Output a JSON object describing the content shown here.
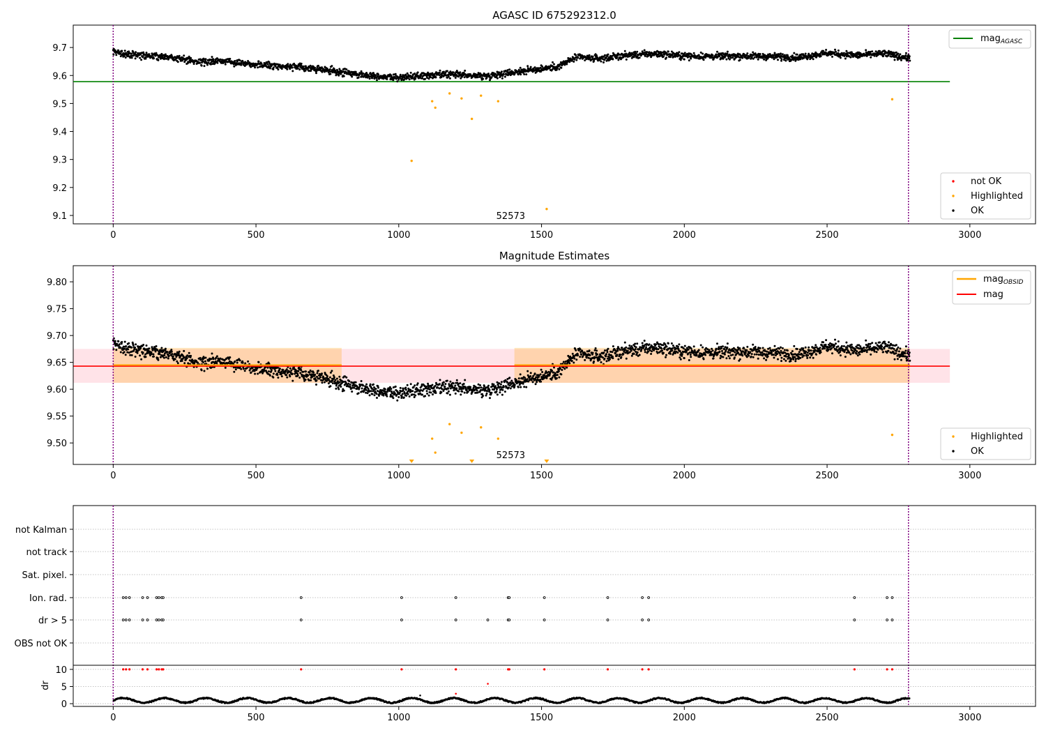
{
  "chart_data": [
    {
      "type": "scatter",
      "title": "AGASC ID 675292312.0",
      "xlabel": "",
      "ylabel": "",
      "xlim": [
        -140,
        3230
      ],
      "ylim": [
        9.07,
        9.78
      ],
      "xticks": [
        0,
        500,
        1000,
        1500,
        2000,
        2500,
        3000
      ],
      "xtick_labels": [
        "0",
        "500",
        "1000",
        "1500",
        "2000",
        "2500",
        "3000"
      ],
      "yticks": [
        9.1,
        9.2,
        9.3,
        9.4,
        9.5,
        9.6,
        9.7
      ],
      "ytick_labels": [
        "9.1",
        "9.2",
        "9.3",
        "9.4",
        "9.5",
        "9.6",
        "9.7"
      ],
      "reference_line": {
        "name": "mag_{AGASC}",
        "label_main": "mag",
        "label_sub": "AGASC",
        "value": 9.578,
        "color": "#008000",
        "x_range": [
          -140,
          2930
        ]
      },
      "vlines": [
        0,
        2785
      ],
      "vline_color": "#800080",
      "annotation": {
        "text": "52573",
        "x": 1392,
        "y": 9.1
      },
      "trend": [
        [
          0,
          9.683
        ],
        [
          100,
          9.672
        ],
        [
          200,
          9.666
        ],
        [
          300,
          9.648
        ],
        [
          400,
          9.652
        ],
        [
          500,
          9.64
        ],
        [
          600,
          9.633
        ],
        [
          700,
          9.625
        ],
        [
          800,
          9.611
        ],
        [
          900,
          9.6
        ],
        [
          1000,
          9.592
        ],
        [
          1100,
          9.6
        ],
        [
          1200,
          9.603
        ],
        [
          1300,
          9.598
        ],
        [
          1400,
          9.612
        ],
        [
          1500,
          9.624
        ],
        [
          1560,
          9.632
        ],
        [
          1620,
          9.665
        ],
        [
          1700,
          9.66
        ],
        [
          1800,
          9.672
        ],
        [
          1900,
          9.678
        ],
        [
          2000,
          9.67
        ],
        [
          2100,
          9.668
        ],
        [
          2200,
          9.67
        ],
        [
          2300,
          9.668
        ],
        [
          2400,
          9.665
        ],
        [
          2500,
          9.68
        ],
        [
          2600,
          9.672
        ],
        [
          2700,
          9.678
        ],
        [
          2790,
          9.662
        ]
      ],
      "ok_series": {
        "name": "OK",
        "color": "#000000",
        "x_start": 0,
        "x_end": 2790,
        "count": 2300,
        "scatter": 0.011
      },
      "highlighted_points": {
        "name": "Highlighted",
        "color": "#ffa500",
        "x": [
          1045,
          1117,
          1128,
          1178,
          1220,
          1256,
          1288,
          1348,
          1518,
          2728
        ],
        "y": [
          9.295,
          9.508,
          9.485,
          9.536,
          9.518,
          9.445,
          9.528,
          9.508,
          9.123,
          9.515
        ]
      },
      "legend_upper": {
        "position": "upper-right",
        "entries": [
          "mag_{AGASC}"
        ]
      },
      "legend_lower": {
        "position": "lower-right",
        "entries": [
          {
            "label": "not OK",
            "color": "#ff0000"
          },
          {
            "label": "Highlighted",
            "color": "#ffa500"
          },
          {
            "label": "OK",
            "color": "#000000"
          }
        ]
      }
    },
    {
      "type": "scatter",
      "title": "Magnitude Estimates",
      "xlabel": "",
      "ylabel": "",
      "xlim": [
        -140,
        3230
      ],
      "ylim": [
        9.46,
        9.83
      ],
      "xticks": [
        0,
        500,
        1000,
        1500,
        2000,
        2500,
        3000
      ],
      "xtick_labels": [
        "0",
        "500",
        "1000",
        "1500",
        "2000",
        "2500",
        "3000"
      ],
      "yticks": [
        9.5,
        9.55,
        9.6,
        9.65,
        9.7,
        9.75,
        9.8
      ],
      "ytick_labels": [
        "9.50",
        "9.55",
        "9.60",
        "9.65",
        "9.70",
        "9.75",
        "9.80"
      ],
      "mag_line": {
        "name": "mag",
        "value": 9.643,
        "color": "#ff0000",
        "x_range": [
          -140,
          2930
        ]
      },
      "mag_band": {
        "low": 9.612,
        "high": 9.675,
        "color": "#ffc0cb",
        "x_range": [
          -140,
          2930
        ]
      },
      "obsid_segments": [
        {
          "x": [
            0,
            800
          ],
          "value": 9.645,
          "low": 9.612,
          "high": 9.677
        },
        {
          "x": [
            1405,
            2790
          ],
          "value": 9.645,
          "low": 9.612,
          "high": 9.677
        }
      ],
      "obsid_legend": {
        "label_main": "mag",
        "label_sub": "OBSID",
        "color": "#ffa500"
      },
      "vlines": [
        0,
        2785
      ],
      "annotation": {
        "text": "52573",
        "x": 1392,
        "y": 9.47
      },
      "highlighted_points": {
        "name": "Highlighted",
        "color": "#ffa500",
        "x": [
          1117,
          1128,
          1178,
          1220,
          1288,
          1348,
          2728
        ],
        "y": [
          9.508,
          9.482,
          9.535,
          9.519,
          9.529,
          9.508,
          9.515
        ]
      },
      "below_range_markers": {
        "x": [
          1045,
          1256,
          1518
        ],
        "color": "#ffa500"
      },
      "legend_upper": {
        "position": "upper-right",
        "entries": [
          "mag_{OBSID}",
          "mag"
        ]
      },
      "legend_lower": {
        "position": "lower-right",
        "entries": [
          {
            "label": "Highlighted",
            "color": "#ffa500"
          },
          {
            "label": "OK",
            "color": "#000000"
          }
        ]
      }
    },
    {
      "type": "scatter",
      "title": "",
      "xlabel": "",
      "xlim": [
        -140,
        3230
      ],
      "flag_rows": [
        "not Kalman",
        "not track",
        "Sat. pixel.",
        "Ion. rad.",
        "dr > 5",
        "OBS not OK"
      ],
      "flag_x": [
        35,
        45,
        57,
        103,
        120,
        152,
        160,
        170,
        175,
        658,
        1010,
        1200,
        1383,
        1387,
        1510,
        1732,
        1853,
        1875,
        2596,
        2710,
        2728
      ],
      "flag_rows_with_points": [
        "Ion. rad.",
        "dr > 5"
      ],
      "extra_dr5_x": [
        1312
      ],
      "dr_panel": {
        "ylabel": "dr",
        "ylim": [
          -0.8,
          11.2
        ],
        "yticks": [
          0,
          5,
          10
        ],
        "ytick_labels": [
          "0",
          "5",
          "10"
        ],
        "clip_value": 10,
        "outliers": [
          [
            1200,
            2.9
          ],
          [
            1312,
            5.8
          ],
          [
            1075,
            2.4
          ]
        ],
        "baseline_range": [
          0.1,
          1.8
        ]
      },
      "xticks": [
        0,
        500,
        1000,
        1500,
        2000,
        2500,
        3000
      ],
      "xtick_labels": [
        "0",
        "500",
        "1000",
        "1500",
        "2000",
        "2500",
        "3000"
      ],
      "vlines": [
        0,
        2785
      ]
    }
  ]
}
